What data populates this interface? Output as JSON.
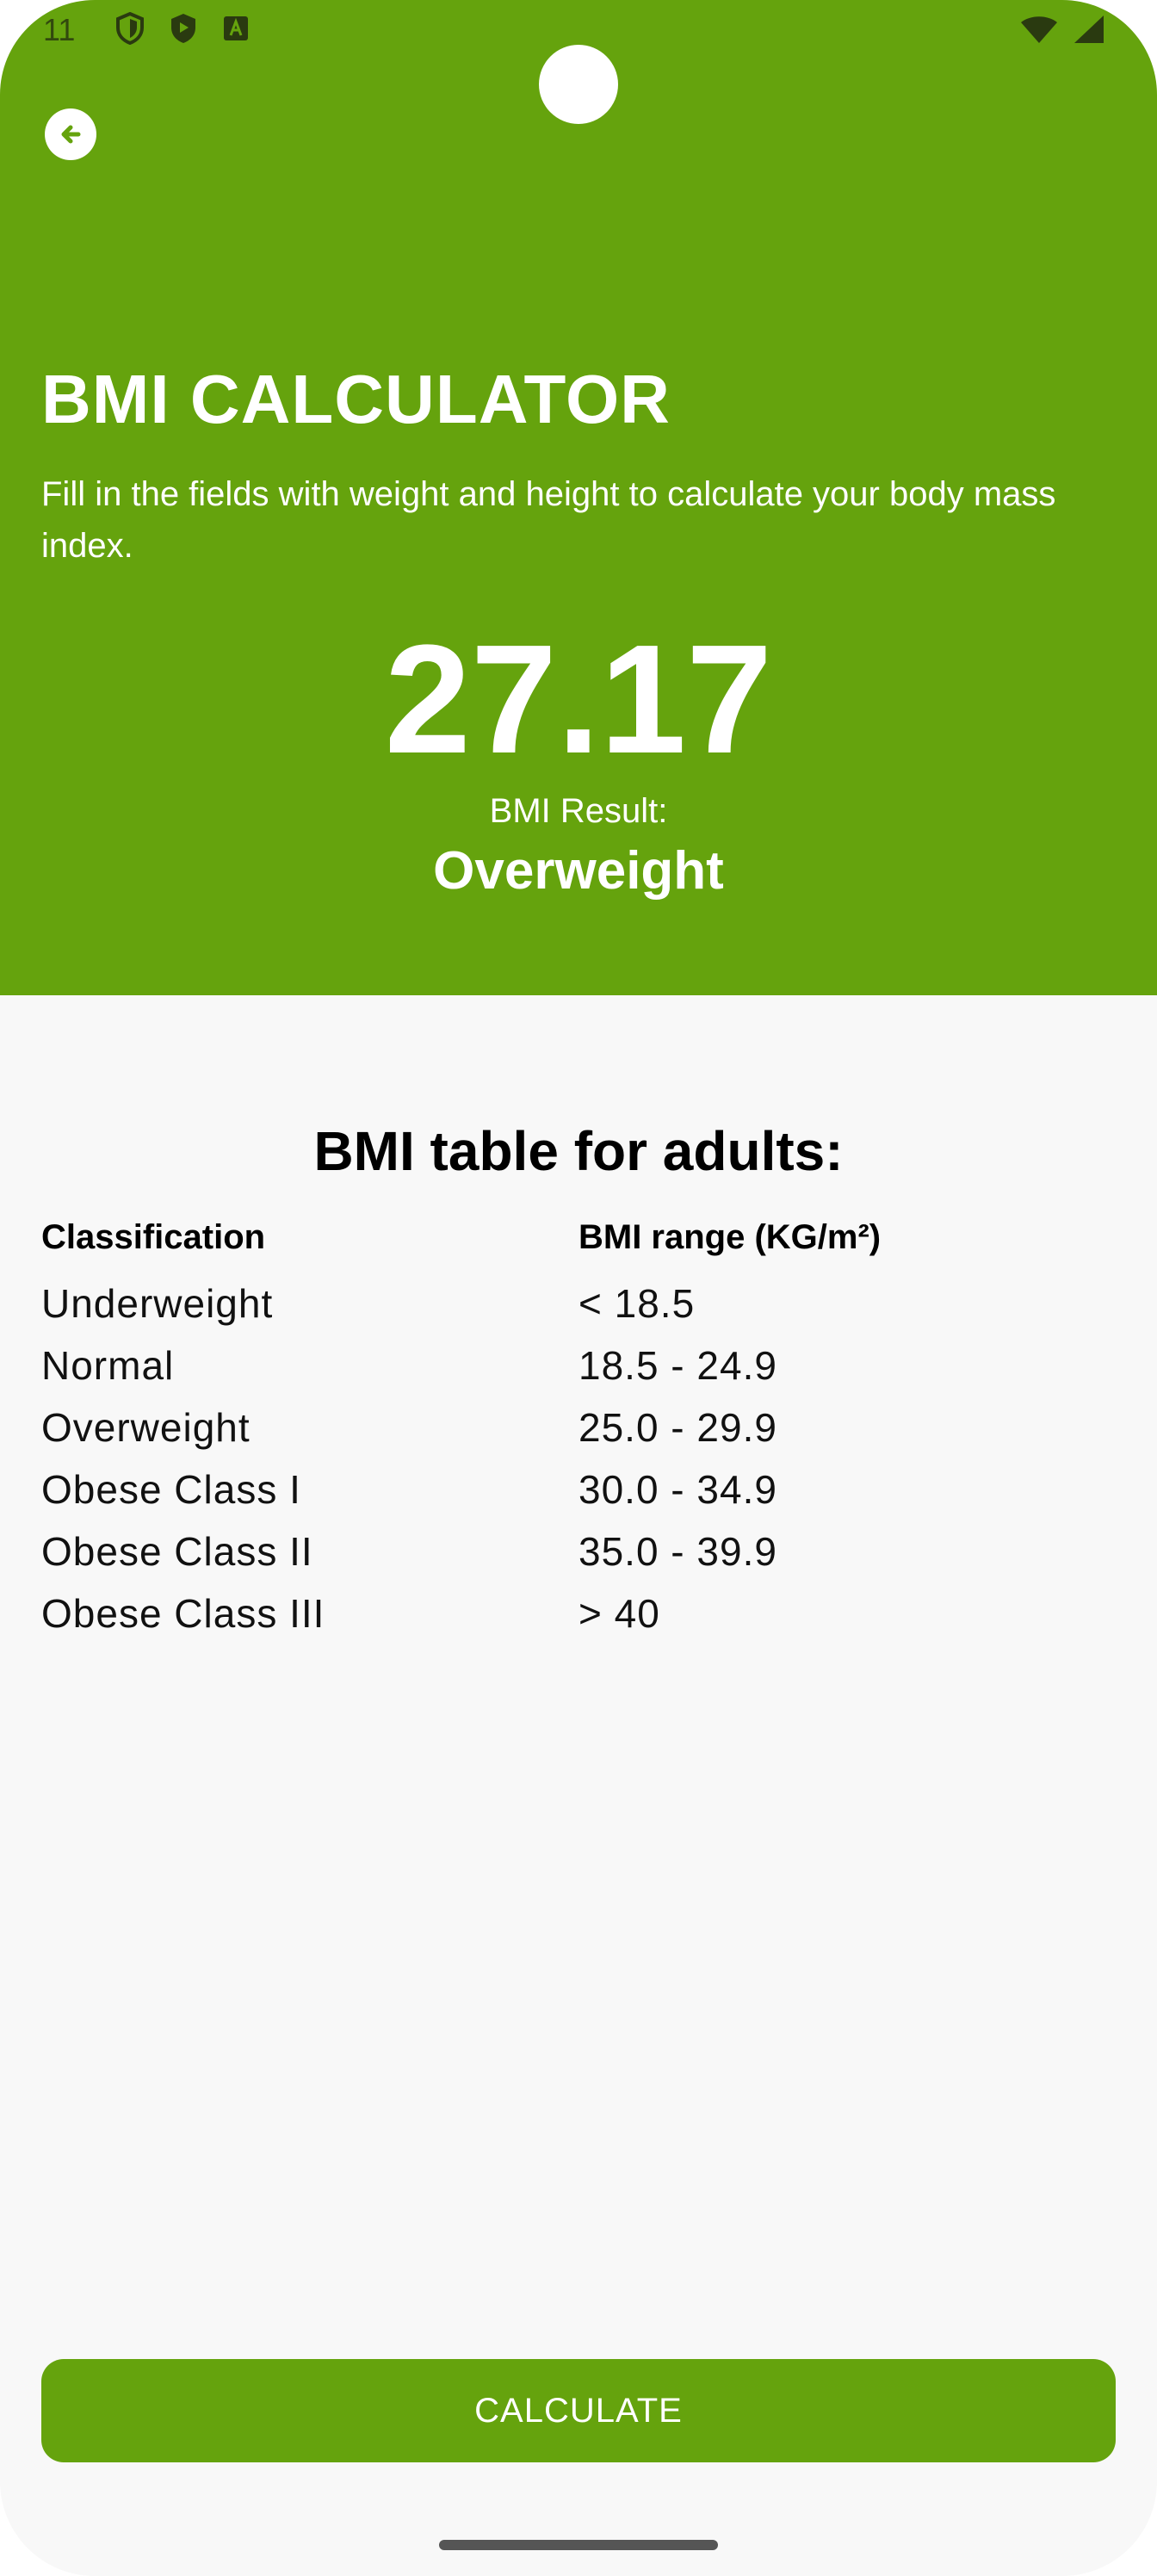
{
  "status_bar": {
    "time": "11",
    "left_icons": [
      "shield-icon",
      "play-shield-icon",
      "a-badge-icon"
    ],
    "right_icons": [
      "wifi-icon",
      "signal-icon"
    ]
  },
  "header": {
    "title": "BMI CALCULATOR",
    "subtitle": "Fill in the fields with weight and height to calculate your body mass index."
  },
  "result": {
    "value": "27.17",
    "label": "BMI Result:",
    "classification": "Overweight"
  },
  "table": {
    "title": "BMI table for adults:",
    "headers": [
      "Classification",
      "BMI range (KG/m²)"
    ],
    "rows": [
      [
        "Underweight",
        "< 18.5"
      ],
      [
        "Normal",
        "18.5 - 24.9"
      ],
      [
        "Overweight",
        "25.0 - 29.9"
      ],
      [
        "Obese Class I",
        "30.0 - 34.9"
      ],
      [
        "Obese Class II",
        "35.0 - 39.9"
      ],
      [
        "Obese Class III",
        "> 40"
      ]
    ]
  },
  "actions": {
    "calculate_label": "CALCULATE"
  },
  "colors": {
    "accent": "#65a30d",
    "background": "#f8f8f8",
    "text": "#000000"
  }
}
